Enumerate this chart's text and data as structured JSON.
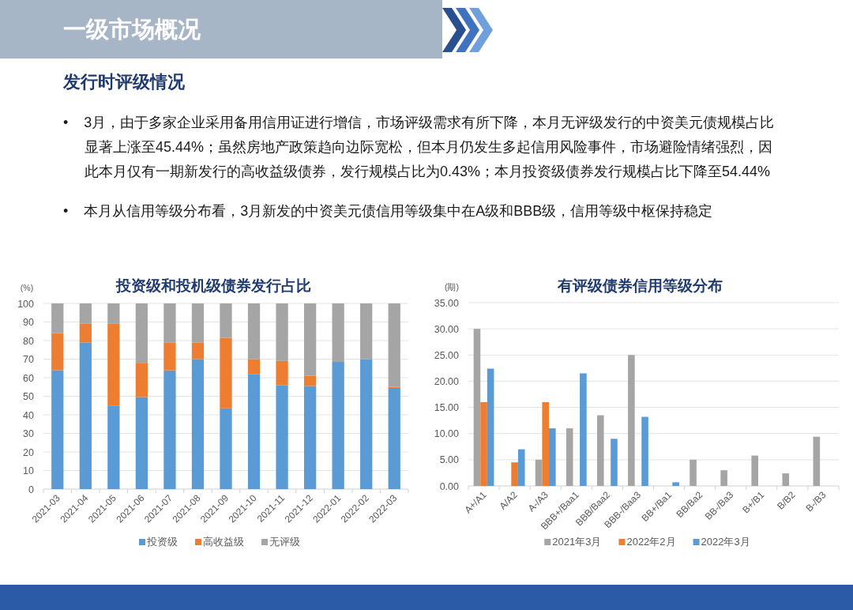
{
  "chart_data": [
    {
      "type": "other",
      "title": "一级市场概况",
      "subtitle": "发行时评级情况",
      "annotations": [
        "• 3月，由于多家企业采用备用信用证进行增信，市场评级需求有所下降，本月无评级发行的中资美元债规模占比显著上涨至45.44%；虽然房地产政策趋向边际宽松，但本月仍发生多起信用风险事件，市场避险情绪强烈，因此本月仅有一期新发行的高收益级债券，发行规模占比为0.43%；本月投资级债券发行规模占比下降至54.44%",
        "• 本月从信用等级分布看，3月新发的中资美元债信用等级集中在A级和BBB级，信用等级中枢保持稳定"
      ]
    },
    {
      "type": "bar",
      "title": "投资级和投机级债券发行占比",
      "ylabel": "(%)",
      "stacked": true,
      "grid": "y",
      "legend": "bottom",
      "categories": [
        "2021-03",
        "2021-04",
        "2021-05",
        "2021-06",
        "2021-07",
        "2021-08",
        "2021-09",
        "2021-10",
        "2021-11",
        "2021-12",
        "2022-01",
        "2022-02",
        "2022-03"
      ],
      "series": [
        {
          "name": "投资级",
          "color": "#5b9bd5",
          "values": [
            64,
            79,
            45,
            49.5,
            64,
            70,
            43.5,
            62,
            56,
            55.5,
            68.5,
            70,
            54.5
          ]
        },
        {
          "name": "高收益级",
          "color": "#ed7d31",
          "values": [
            20,
            10,
            44,
            18.5,
            15,
            9,
            38,
            8,
            13,
            5.5,
            null,
            null,
            0.5
          ]
        },
        {
          "name": "无评级",
          "color": "#a5a5a5",
          "values": [
            16,
            11,
            11,
            32,
            21,
            21,
            18.5,
            30,
            31,
            39,
            31.5,
            30,
            45
          ]
        }
      ],
      "ylim": [
        0,
        100
      ],
      "yticks": [
        0,
        10,
        20,
        30,
        40,
        50,
        60,
        70,
        80,
        90,
        100
      ]
    },
    {
      "type": "bar",
      "title": "有评级债券信用等级分布",
      "ylabel": "(期)",
      "grid": "y",
      "legend": "bottom",
      "categories": [
        "A+/A1",
        "A/A2",
        "A-/A3",
        "BBB+/Baa1",
        "BBB/Baa2",
        "BBB-/Baa3",
        "BB+/Ba1",
        "BB/Ba2",
        "BB-/Ba3",
        "B+/B1",
        "B/B2",
        "B-/B3"
      ],
      "series": [
        {
          "name": "2021年3月",
          "color": "#a5a5a5",
          "values": [
            30,
            null,
            5,
            11,
            13.5,
            25,
            null,
            5,
            3,
            5.8,
            2.4,
            9.4
          ]
        },
        {
          "name": "2022年2月",
          "color": "#ed7d31",
          "values": [
            16,
            4.5,
            16,
            null,
            null,
            null,
            null,
            null,
            null,
            null,
            null,
            null
          ]
        },
        {
          "name": "2022年3月",
          "color": "#5b9bd5",
          "values": [
            22.4,
            7,
            11,
            21.5,
            9,
            13.2,
            0.7,
            null,
            null,
            null,
            null,
            null
          ]
        }
      ],
      "ylim": [
        0,
        35
      ],
      "yticks": [
        {
          "value": 0,
          "label": "0.00"
        },
        {
          "value": 5,
          "label": "5.00"
        },
        {
          "value": 10,
          "label": "10.00"
        },
        {
          "value": 15,
          "label": "15.00"
        },
        {
          "value": 20,
          "label": "20.00"
        },
        {
          "value": 25,
          "label": "25.00"
        },
        {
          "value": 30,
          "label": "30.00"
        },
        {
          "value": 35,
          "label": "35.00"
        }
      ]
    }
  ]
}
